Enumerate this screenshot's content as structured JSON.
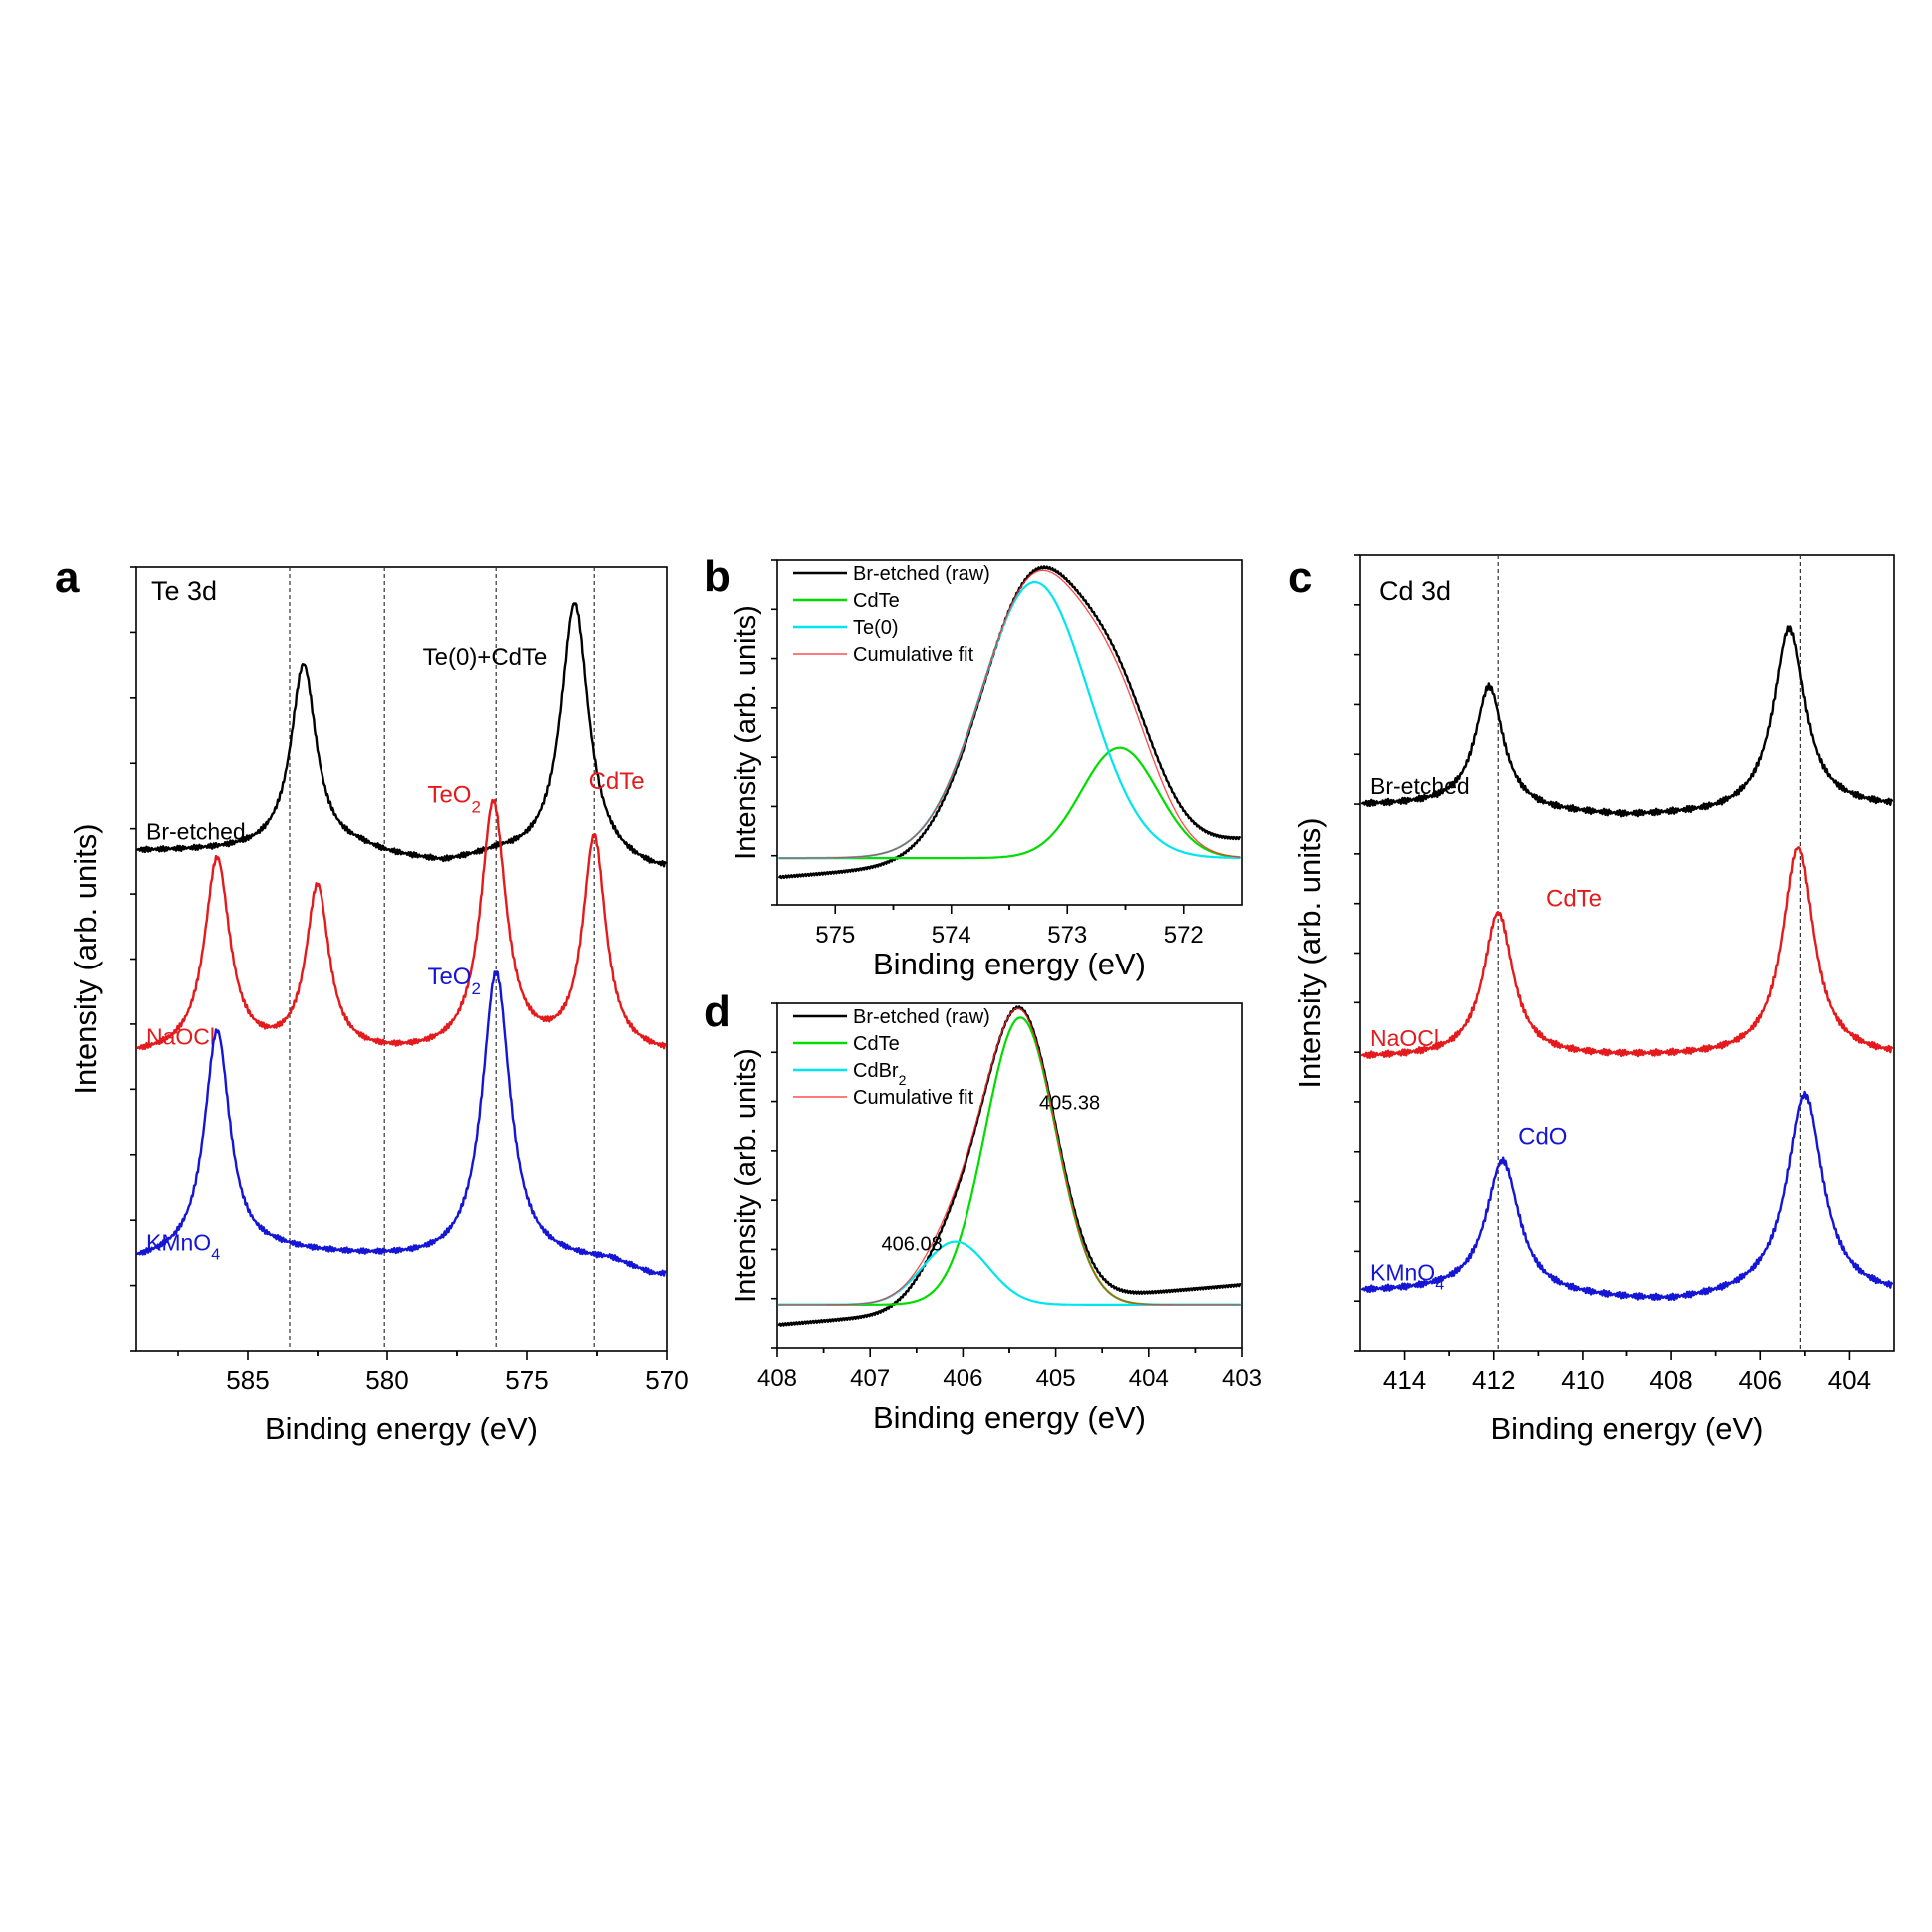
{
  "colors": {
    "black": "#000000",
    "red": "#e41a1c",
    "blue": "#1515d6",
    "green": "#00dd00",
    "cyan": "#00e5ee",
    "fit": "#ff2a2a"
  },
  "chart_data": [
    {
      "id": "a",
      "type": "line",
      "panel_letter": "a",
      "inset_title": "Te 3d",
      "xlabel": "Binding energy (eV)",
      "ylabel": "Intensity (arb. units)",
      "xlim": [
        589,
        570
      ],
      "xticks": [
        "585",
        "580",
        "575",
        "570"
      ],
      "reference_lines_x": [
        583.5,
        580.1,
        576.1,
        572.6
      ],
      "series": [
        {
          "name": "Br-etched",
          "color": "#000000",
          "offset": 2.1,
          "baseline": [
            [
              589,
              0.0
            ],
            [
              583,
              0.0
            ],
            [
              581,
              0.0
            ],
            [
              580,
              -0.03
            ],
            [
              578,
              -0.07
            ],
            [
              576,
              -0.03
            ],
            [
              574,
              -0.06
            ],
            [
              572,
              -0.08
            ],
            [
              570.5,
              -0.11
            ]
          ],
          "peaks": [
            {
              "center": 583.0,
              "height": 0.95,
              "width": 0.55
            },
            {
              "center": 573.3,
              "height": 1.33,
              "width": 0.6
            }
          ],
          "annotations": [
            {
              "text": "Te(0)+CdTe",
              "color": "#000000",
              "x": 576.5,
              "y": 3.05
            }
          ]
        },
        {
          "name": "NaOCl",
          "color": "#e41a1c",
          "offset": 1.05,
          "baseline": [
            [
              589,
              0.0
            ],
            [
              570.5,
              0.0
            ]
          ],
          "peaks": [
            {
              "center": 586.1,
              "height": 1.0,
              "width": 0.55
            },
            {
              "center": 582.5,
              "height": 0.85,
              "width": 0.5
            },
            {
              "center": 576.2,
              "height": 1.28,
              "width": 0.55
            },
            {
              "center": 572.6,
              "height": 1.1,
              "width": 0.5
            }
          ],
          "annotations": [
            {
              "text": "TeO",
              "sub": "2",
              "color": "#e41a1c",
              "x": 577.6,
              "y": 2.35
            },
            {
              "text": "CdTe",
              "color": "#e41a1c",
              "x": 571.8,
              "y": 2.42
            }
          ]
        },
        {
          "name": "KMnO",
          "name_sub": "4",
          "color": "#1515d6",
          "offset": 0.0,
          "baseline": [
            [
              589,
              0.0
            ],
            [
              584,
              0.05
            ],
            [
              578,
              0.0
            ],
            [
              572,
              0.0
            ],
            [
              570.5,
              -0.07
            ]
          ],
          "peaks": [
            {
              "center": 586.1,
              "height": 1.15,
              "width": 0.55
            },
            {
              "center": 576.1,
              "height": 1.48,
              "width": 0.6
            }
          ],
          "annotations": [
            {
              "text": "TeO",
              "sub": "2",
              "color": "#1515d6",
              "x": 577.6,
              "y": 1.42
            }
          ]
        }
      ]
    },
    {
      "id": "b",
      "type": "line",
      "panel_letter": "b",
      "xlabel": "Binding energy (eV)",
      "ylabel": "Intensity (arb. units)",
      "xlim": [
        575.5,
        571.5
      ],
      "xticks": [
        "575",
        "574",
        "573",
        "572"
      ],
      "legend_position": "top-left",
      "legend": [
        {
          "label": "Br-etched (raw)",
          "color": "#000000"
        },
        {
          "label": "CdTe",
          "color": "#00dd00"
        },
        {
          "label": "Te(0)",
          "color": "#00e5ee"
        },
        {
          "label": "Cumulative fit",
          "color": "#ff2a2a"
        }
      ],
      "baseline": 0.12,
      "components": [
        {
          "name": "CdTe",
          "center": 572.55,
          "amp": 0.4,
          "sigma": 0.33,
          "color": "#00dd00"
        },
        {
          "name": "Te(0)",
          "center": 573.28,
          "amp": 1.0,
          "sigma": 0.46,
          "color": "#00e5ee"
        }
      ]
    },
    {
      "id": "d",
      "type": "line",
      "panel_letter": "d",
      "xlabel": "Binding energy (eV)",
      "ylabel": "Intensity (arb. units)",
      "xlim": [
        408,
        403
      ],
      "xticks": [
        "408",
        "407",
        "406",
        "405",
        "404",
        "403"
      ],
      "legend_position": "top-left",
      "legend": [
        {
          "label": "Br-etched (raw)",
          "color": "#000000"
        },
        {
          "label": "CdTe",
          "color": "#00dd00"
        },
        {
          "label": "CdBr",
          "label_sub": "2",
          "color": "#00e5ee"
        },
        {
          "label": "Cumulative fit",
          "color": "#ff2a2a"
        }
      ],
      "baseline": 0.1,
      "components": [
        {
          "name": "CdTe",
          "center": 405.38,
          "amp": 1.0,
          "sigma": 0.38,
          "color": "#00dd00"
        },
        {
          "name": "CdBr2",
          "center": 406.08,
          "amp": 0.22,
          "sigma": 0.35,
          "color": "#00e5ee"
        }
      ],
      "peak_labels": [
        {
          "text": "405.38",
          "x": 404.85,
          "y": 0.78
        },
        {
          "text": "406.08",
          "x": 406.55,
          "y": 0.29
        }
      ]
    },
    {
      "id": "c",
      "type": "line",
      "panel_letter": "c",
      "inset_title": "Cd 3d",
      "xlabel": "Binding energy (eV)",
      "ylabel": "Intensity (arb. units)",
      "xlim": [
        415,
        403
      ],
      "xticks": [
        "414",
        "412",
        "410",
        "408",
        "406",
        "404"
      ],
      "reference_lines_x": [
        411.9,
        405.1
      ],
      "series": [
        {
          "name": "Br-etched",
          "color": "#000000",
          "offset": 2.08,
          "baseline": [
            [
              415,
              0.0
            ],
            [
              413,
              0.0
            ],
            [
              411,
              -0.03
            ],
            [
              409,
              -0.05
            ],
            [
              407,
              -0.04
            ],
            [
              405,
              -0.01
            ],
            [
              403.5,
              -0.01
            ]
          ],
          "peaks": [
            {
              "center": 412.1,
              "height": 0.52,
              "width": 0.38
            },
            {
              "center": 405.35,
              "height": 0.77,
              "width": 0.42
            }
          ],
          "annotations": []
        },
        {
          "name": "NaOCl",
          "color": "#e41a1c",
          "offset": 1.0,
          "baseline": [
            [
              415,
              0.0
            ],
            [
              413,
              0.0
            ],
            [
              410,
              0.0
            ],
            [
              407,
              0.0
            ],
            [
              403.5,
              0.0
            ]
          ],
          "peaks": [
            {
              "center": 411.9,
              "height": 0.62,
              "width": 0.4
            },
            {
              "center": 405.15,
              "height": 0.9,
              "width": 0.42
            }
          ],
          "annotations": [
            {
              "text": "CdTe",
              "color": "#e41a1c",
              "x": 410.2,
              "y": 1.65
            }
          ]
        },
        {
          "name": "KMnO",
          "name_sub": "4",
          "color": "#1515d6",
          "offset": 0.0,
          "baseline": [
            [
              415,
              0.0
            ],
            [
              413,
              0.0
            ],
            [
              410,
              -0.03
            ],
            [
              408,
              -0.05
            ],
            [
              406,
              -0.02
            ],
            [
              403.5,
              -0.02
            ]
          ],
          "peaks": [
            {
              "center": 411.8,
              "height": 0.57,
              "width": 0.45
            },
            {
              "center": 405.0,
              "height": 0.86,
              "width": 0.48
            }
          ],
          "annotations": [
            {
              "text": "CdO",
              "color": "#1515d6",
              "x": 410.9,
              "y": 0.63
            }
          ]
        }
      ]
    }
  ]
}
